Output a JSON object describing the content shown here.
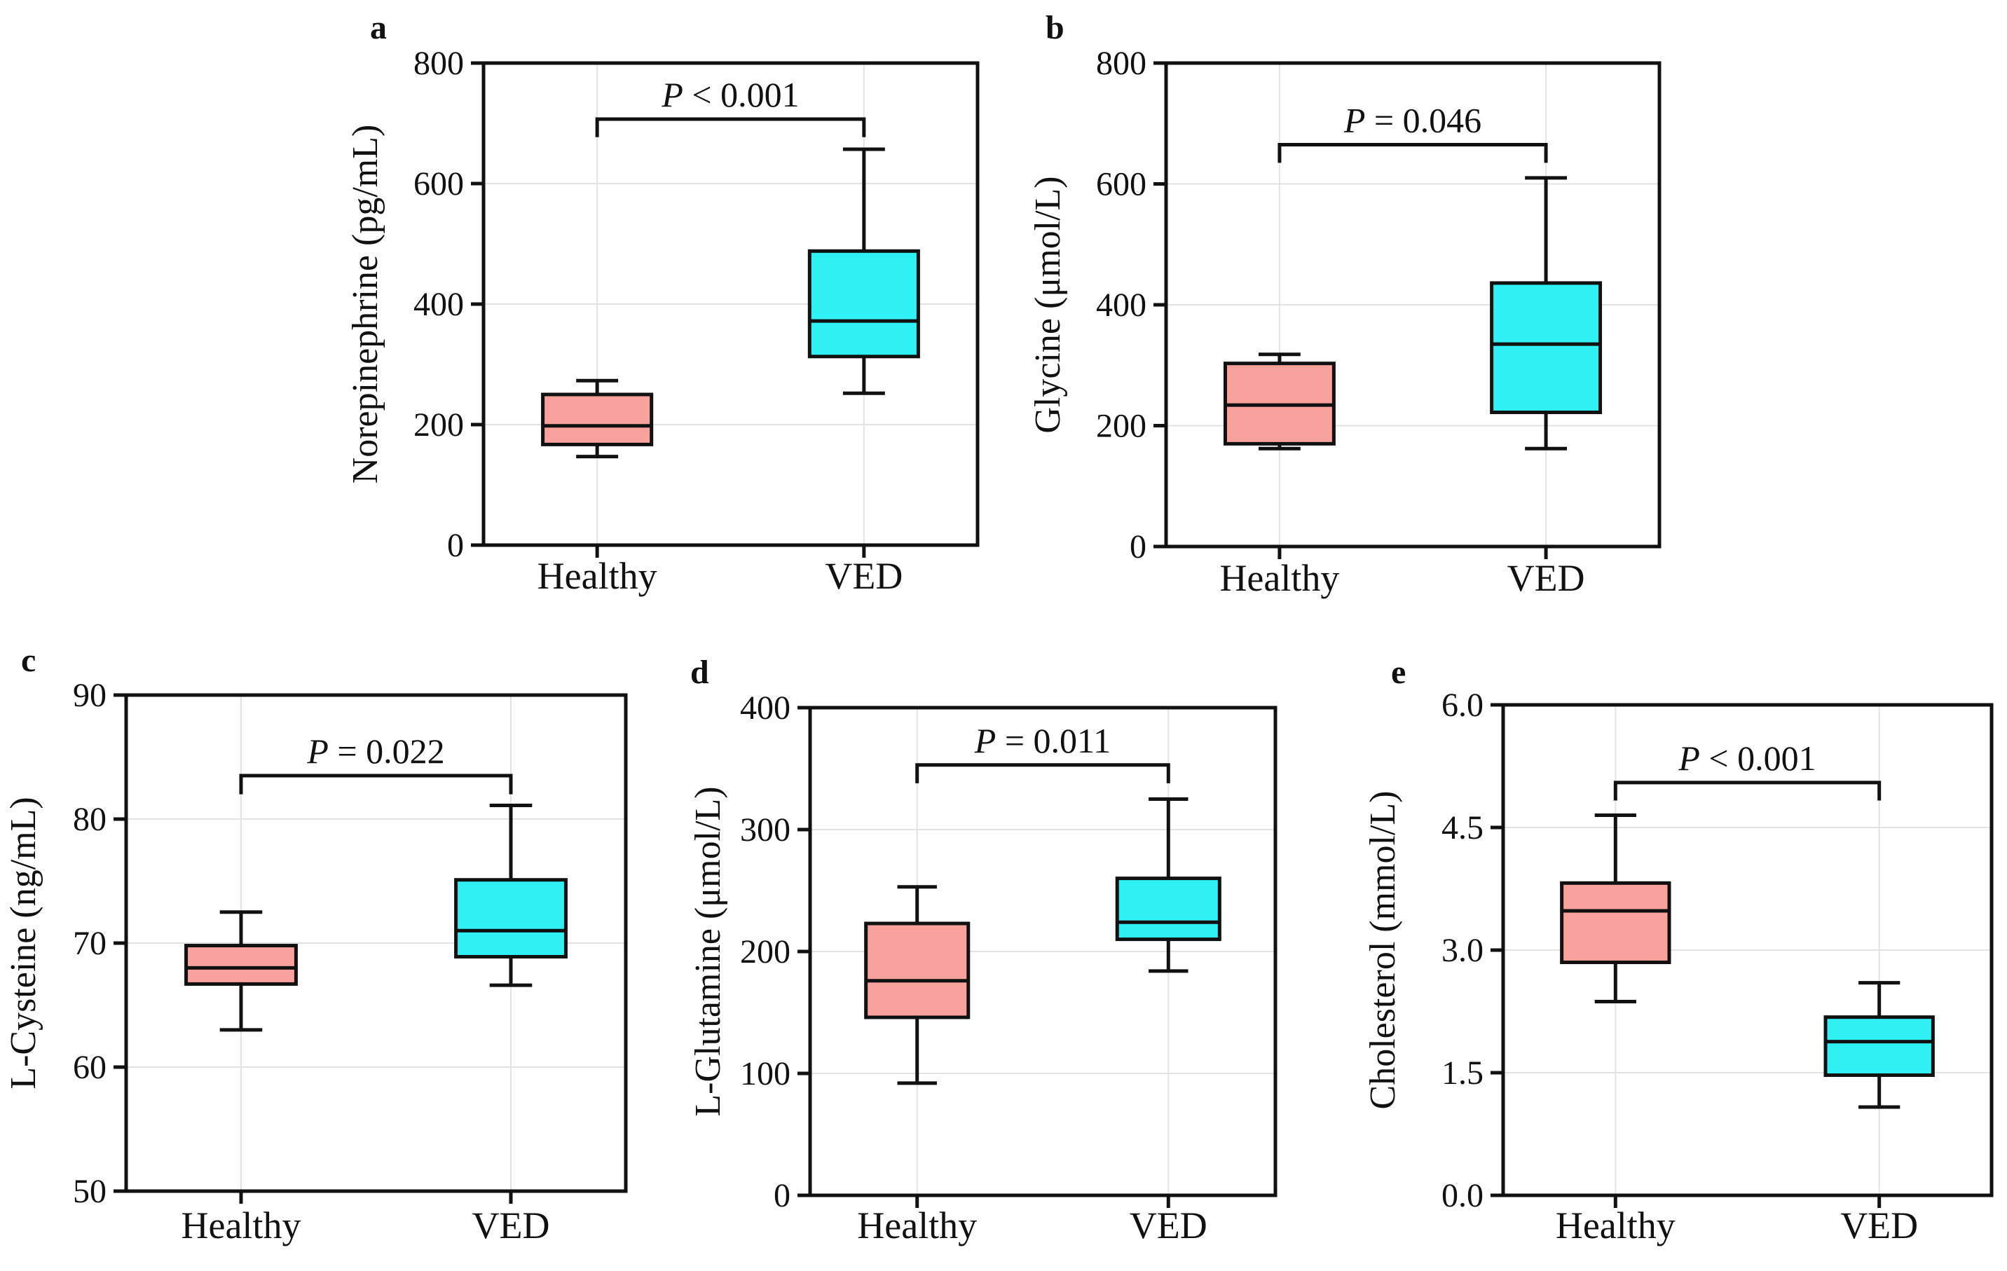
{
  "chart_data": [
    {
      "type": "box",
      "panel": "a",
      "ylabel": "Norepinephrine (pg/mL)",
      "ylim": [
        0,
        800
      ],
      "yticks": [
        "0",
        "200",
        "400",
        "600",
        "800"
      ],
      "categories": [
        "Healthy",
        "VED"
      ],
      "grid": true,
      "series": [
        {
          "name": "Healthy",
          "min": 147,
          "q1": 167,
          "median": 198,
          "q3": 250,
          "max": 273,
          "color": "#f8a19d"
        },
        {
          "name": "VED",
          "min": 252,
          "q1": 313,
          "median": 372,
          "q3": 488,
          "max": 657,
          "color": "#2ff0f4"
        }
      ],
      "p_value": {
        "symbol": "P",
        "text": " < 0.001",
        "bracket_y": 707,
        "bracket_drop": 30
      }
    },
    {
      "type": "box",
      "panel": "b",
      "ylabel": "Glycine (μmol/L)",
      "ylim": [
        0,
        800
      ],
      "yticks": [
        "0",
        "200",
        "400",
        "600",
        "800"
      ],
      "categories": [
        "Healthy",
        "VED"
      ],
      "grid": true,
      "series": [
        {
          "name": "Healthy",
          "min": 162,
          "q1": 170,
          "median": 234,
          "q3": 303,
          "max": 318,
          "color": "#f8a19d"
        },
        {
          "name": "VED",
          "min": 162,
          "q1": 222,
          "median": 335,
          "q3": 436,
          "max": 610,
          "color": "#2ff0f4"
        }
      ],
      "p_value": {
        "symbol": "P",
        "text": " = 0.046",
        "bracket_y": 665,
        "bracket_drop": 30
      }
    },
    {
      "type": "box",
      "panel": "c",
      "ylabel": "L-Cysteine (ng/mL)",
      "ylim": [
        50,
        90
      ],
      "yticks": [
        "50",
        "60",
        "70",
        "80",
        "90"
      ],
      "categories": [
        "Healthy",
        "VED"
      ],
      "grid": true,
      "series": [
        {
          "name": "Healthy",
          "min": 63,
          "q1": 66.7,
          "median": 68,
          "q3": 69.8,
          "max": 72.5,
          "color": "#f8a19d"
        },
        {
          "name": "VED",
          "min": 66.6,
          "q1": 68.9,
          "median": 71,
          "q3": 75.1,
          "max": 81.1,
          "color": "#2ff0f4"
        }
      ],
      "p_value": {
        "symbol": "P",
        "text": " = 0.022",
        "bracket_y": 83.5,
        "bracket_drop": 1.5
      }
    },
    {
      "type": "box",
      "panel": "d",
      "ylabel": "L-Glutamine (μmol/L)",
      "ylim": [
        0,
        400
      ],
      "yticks": [
        "0",
        "100",
        "200",
        "300",
        "400"
      ],
      "categories": [
        "Healthy",
        "VED"
      ],
      "grid": true,
      "series": [
        {
          "name": "Healthy",
          "min": 92,
          "q1": 146,
          "median": 176,
          "q3": 223,
          "max": 253,
          "color": "#f8a19d"
        },
        {
          "name": "VED",
          "min": 184,
          "q1": 210,
          "median": 224,
          "q3": 260,
          "max": 325,
          "color": "#2ff0f4"
        }
      ],
      "p_value": {
        "symbol": "P",
        "text": " = 0.011",
        "bracket_y": 353,
        "bracket_drop": 15
      }
    },
    {
      "type": "box",
      "panel": "e",
      "ylabel": "Cholesterol (mmol/L)",
      "ylim": [
        0,
        6
      ],
      "yticks": [
        "0.0",
        "1.5",
        "3.0",
        "4.5",
        "6.0"
      ],
      "categories": [
        "Healthy",
        "VED"
      ],
      "grid": true,
      "series": [
        {
          "name": "Healthy",
          "min": 2.37,
          "q1": 2.85,
          "median": 3.48,
          "q3": 3.82,
          "max": 4.65,
          "color": "#f8a19d"
        },
        {
          "name": "VED",
          "min": 1.08,
          "q1": 1.47,
          "median": 1.88,
          "q3": 2.18,
          "max": 2.6,
          "color": "#2ff0f4"
        }
      ],
      "p_value": {
        "symbol": "P",
        "text": " < 0.001",
        "bracket_y": 5.05,
        "bracket_drop": 0.22
      }
    }
  ]
}
